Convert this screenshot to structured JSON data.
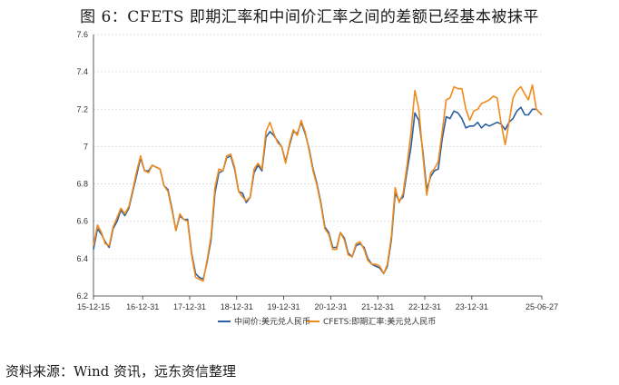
{
  "title": "图 6：CFETS 即期汇率和中间价汇率之间的差额已经基本被抹平",
  "source": "资料来源：Wind 资讯，远东资信整理",
  "colors": {
    "series1": "#2b5fa0",
    "series2": "#f08a1c",
    "grid": "#d9d9d9",
    "axis": "#333333"
  },
  "chart_data": {
    "type": "line",
    "title": "",
    "xlabel": "",
    "ylabel": "",
    "ylim": [
      6.2,
      7.6
    ],
    "yticks": [
      6.2,
      6.4,
      6.6,
      6.8,
      7,
      7.2,
      7.4,
      7.6
    ],
    "ytick_labels": [
      "6.2",
      "6.4",
      "6.6",
      "6.8",
      "7",
      "7.2",
      "7.4",
      "7.6"
    ],
    "xlim": [
      "2015-12-15",
      "2025-06-27"
    ],
    "xticks": [
      "2015-12-15",
      "2016-12-31",
      "2017-12-31",
      "2018-12-31",
      "2019-12-31",
      "2020-12-31",
      "2021-12-31",
      "2022-12-31",
      "2023-12-31",
      "2025-06-27"
    ],
    "xtick_labels": [
      "15-12-15",
      "16-12-31",
      "17-12-31",
      "18-12-31",
      "19-12-31",
      "20-12-31",
      "21-12-31",
      "22-12-31",
      "23-12-31",
      "25-06-27"
    ],
    "grid": "horizontal",
    "legend": "bottom",
    "series": [
      {
        "name": "中间价:美元兑人民币",
        "x": [
          "2015-12-15",
          "2016-01-15",
          "2016-02-15",
          "2016-03-15",
          "2016-04-15",
          "2016-05-15",
          "2016-06-15",
          "2016-07-15",
          "2016-08-15",
          "2016-09-15",
          "2016-10-15",
          "2016-11-15",
          "2016-12-15",
          "2017-01-15",
          "2017-02-15",
          "2017-03-15",
          "2017-04-15",
          "2017-05-15",
          "2017-06-15",
          "2017-07-15",
          "2017-08-15",
          "2017-09-15",
          "2017-10-15",
          "2017-11-15",
          "2017-12-15",
          "2018-01-15",
          "2018-02-15",
          "2018-03-15",
          "2018-04-15",
          "2018-05-15",
          "2018-06-15",
          "2018-07-15",
          "2018-08-15",
          "2018-09-15",
          "2018-10-15",
          "2018-11-15",
          "2018-12-15",
          "2019-01-15",
          "2019-02-15",
          "2019-03-15",
          "2019-04-15",
          "2019-05-15",
          "2019-06-15",
          "2019-07-15",
          "2019-08-15",
          "2019-09-15",
          "2019-10-15",
          "2019-11-15",
          "2019-12-15",
          "2020-01-15",
          "2020-02-15",
          "2020-03-15",
          "2020-04-15",
          "2020-05-15",
          "2020-06-15",
          "2020-07-15",
          "2020-08-15",
          "2020-09-15",
          "2020-10-15",
          "2020-11-15",
          "2020-12-15",
          "2021-01-15",
          "2021-02-15",
          "2021-03-15",
          "2021-04-15",
          "2021-05-15",
          "2021-06-15",
          "2021-07-15",
          "2021-08-15",
          "2021-09-15",
          "2021-10-15",
          "2021-11-15",
          "2021-12-15",
          "2022-01-15",
          "2022-02-15",
          "2022-03-15",
          "2022-04-15",
          "2022-05-15",
          "2022-06-15",
          "2022-07-15",
          "2022-08-15",
          "2022-09-15",
          "2022-10-15",
          "2022-11-15",
          "2022-12-15",
          "2023-01-15",
          "2023-02-15",
          "2023-03-15",
          "2023-04-15",
          "2023-05-15",
          "2023-06-15",
          "2023-07-15",
          "2023-08-15",
          "2023-09-15",
          "2023-10-15",
          "2023-11-15",
          "2023-12-15",
          "2024-01-15",
          "2024-02-15",
          "2024-03-15",
          "2024-04-15",
          "2024-05-15",
          "2024-06-15",
          "2024-07-15",
          "2024-08-15",
          "2024-09-15",
          "2024-10-15",
          "2024-11-15",
          "2024-12-15",
          "2025-01-15",
          "2025-02-15",
          "2025-03-15",
          "2025-04-15",
          "2025-05-15",
          "2025-06-27"
        ],
        "values": [
          6.45,
          6.56,
          6.53,
          6.49,
          6.46,
          6.56,
          6.6,
          6.66,
          6.63,
          6.67,
          6.76,
          6.85,
          6.94,
          6.87,
          6.87,
          6.9,
          6.89,
          6.88,
          6.79,
          6.77,
          6.67,
          6.55,
          6.63,
          6.61,
          6.61,
          6.43,
          6.32,
          6.3,
          6.29,
          6.38,
          6.5,
          6.75,
          6.86,
          6.87,
          6.94,
          6.95,
          6.88,
          6.76,
          6.75,
          6.7,
          6.73,
          6.86,
          6.9,
          6.87,
          7.05,
          7.08,
          7.06,
          7.03,
          7.0,
          6.92,
          7.01,
          7.08,
          7.07,
          7.13,
          7.07,
          6.99,
          6.88,
          6.8,
          6.7,
          6.57,
          6.54,
          6.46,
          6.46,
          6.54,
          6.51,
          6.43,
          6.41,
          6.47,
          6.48,
          6.46,
          6.4,
          6.37,
          6.36,
          6.35,
          6.32,
          6.36,
          6.5,
          6.75,
          6.71,
          6.73,
          6.87,
          7.0,
          7.18,
          7.14,
          6.98,
          6.77,
          6.84,
          6.87,
          6.88,
          7.04,
          7.16,
          7.15,
          7.19,
          7.18,
          7.15,
          7.1,
          7.11,
          7.11,
          7.13,
          7.1,
          7.12,
          7.11,
          7.12,
          7.13,
          7.12,
          7.09,
          7.13,
          7.15,
          7.19,
          7.21,
          7.17,
          7.17,
          7.2,
          7.2,
          7.17
        ]
      },
      {
        "name": "CFETS:即期汇率:美元兑人民币",
        "x": [
          "2015-12-15",
          "2016-01-15",
          "2016-02-15",
          "2016-03-15",
          "2016-04-15",
          "2016-05-15",
          "2016-06-15",
          "2016-07-15",
          "2016-08-15",
          "2016-09-15",
          "2016-10-15",
          "2016-11-15",
          "2016-12-15",
          "2017-01-15",
          "2017-02-15",
          "2017-03-15",
          "2017-04-15",
          "2017-05-15",
          "2017-06-15",
          "2017-07-15",
          "2017-08-15",
          "2017-09-15",
          "2017-10-15",
          "2017-11-15",
          "2017-12-15",
          "2018-01-15",
          "2018-02-15",
          "2018-03-15",
          "2018-04-15",
          "2018-05-15",
          "2018-06-15",
          "2018-07-15",
          "2018-08-15",
          "2018-09-15",
          "2018-10-15",
          "2018-11-15",
          "2018-12-15",
          "2019-01-15",
          "2019-02-15",
          "2019-03-15",
          "2019-04-15",
          "2019-05-15",
          "2019-06-15",
          "2019-07-15",
          "2019-08-15",
          "2019-09-15",
          "2019-10-15",
          "2019-11-15",
          "2019-12-15",
          "2020-01-15",
          "2020-02-15",
          "2020-03-15",
          "2020-04-15",
          "2020-05-15",
          "2020-06-15",
          "2020-07-15",
          "2020-08-15",
          "2020-09-15",
          "2020-10-15",
          "2020-11-15",
          "2020-12-15",
          "2021-01-15",
          "2021-02-15",
          "2021-03-15",
          "2021-04-15",
          "2021-05-15",
          "2021-06-15",
          "2021-07-15",
          "2021-08-15",
          "2021-09-15",
          "2021-10-15",
          "2021-11-15",
          "2021-12-15",
          "2022-01-15",
          "2022-02-15",
          "2022-03-15",
          "2022-04-15",
          "2022-05-15",
          "2022-06-15",
          "2022-07-15",
          "2022-08-15",
          "2022-09-15",
          "2022-10-15",
          "2022-11-15",
          "2022-12-15",
          "2023-01-15",
          "2023-02-15",
          "2023-03-15",
          "2023-04-15",
          "2023-05-15",
          "2023-06-15",
          "2023-07-15",
          "2023-08-15",
          "2023-09-15",
          "2023-10-15",
          "2023-11-15",
          "2023-12-15",
          "2024-01-15",
          "2024-02-15",
          "2024-03-15",
          "2024-04-15",
          "2024-05-15",
          "2024-06-15",
          "2024-07-15",
          "2024-08-15",
          "2024-09-15",
          "2024-10-15",
          "2024-11-15",
          "2024-12-15",
          "2025-01-15",
          "2025-02-15",
          "2025-03-15",
          "2025-04-15",
          "2025-05-15",
          "2025-06-27"
        ],
        "values": [
          6.47,
          6.58,
          6.54,
          6.48,
          6.47,
          6.57,
          6.62,
          6.67,
          6.64,
          6.68,
          6.77,
          6.87,
          6.95,
          6.87,
          6.86,
          6.9,
          6.89,
          6.88,
          6.79,
          6.76,
          6.66,
          6.55,
          6.64,
          6.61,
          6.6,
          6.42,
          6.3,
          6.29,
          6.28,
          6.39,
          6.52,
          6.78,
          6.88,
          6.87,
          6.95,
          6.96,
          6.89,
          6.76,
          6.73,
          6.71,
          6.73,
          6.88,
          6.91,
          6.88,
          7.08,
          7.13,
          7.07,
          7.02,
          7.0,
          6.91,
          7.02,
          7.09,
          7.06,
          7.14,
          7.08,
          6.98,
          6.87,
          6.79,
          6.69,
          6.56,
          6.53,
          6.45,
          6.45,
          6.54,
          6.5,
          6.42,
          6.41,
          6.48,
          6.49,
          6.45,
          6.39,
          6.37,
          6.37,
          6.36,
          6.32,
          6.37,
          6.52,
          6.78,
          6.7,
          6.75,
          6.9,
          7.08,
          7.3,
          7.2,
          6.96,
          6.74,
          6.86,
          6.88,
          6.92,
          7.08,
          7.25,
          7.26,
          7.32,
          7.31,
          7.31,
          7.2,
          7.14,
          7.19,
          7.2,
          7.23,
          7.24,
          7.25,
          7.27,
          7.26,
          7.12,
          7.01,
          7.13,
          7.26,
          7.3,
          7.32,
          7.28,
          7.25,
          7.33,
          7.2,
          7.17
        ]
      }
    ]
  }
}
